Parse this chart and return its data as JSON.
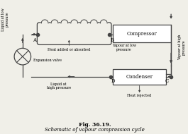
{
  "title": "Fig. 36.19.",
  "subtitle": "Schematic of vapour compression cycle",
  "bg_color": "#f0efe8",
  "line_color": "#444444",
  "compressor_label": "Compressor",
  "condenser_label": "Condenser",
  "heat_absorbed_label": "Heat added or absorbed",
  "expansion_valve_label": "Expansion valve",
  "point_A": "A",
  "point_B": "B",
  "point_C": "C",
  "point_D": "D",
  "label_liquid_low": "Liquid at low\npressure",
  "label_vapour_low": "Vapour at low\npressure",
  "label_vapour_high": "Vapour at high\npressure",
  "label_liquid_high": "Liquid at\nhigh pressure",
  "label_heat_rejected": "Heat rejected",
  "fig_bold": "Fig. 36.19.",
  "fig_italic": "Schematic of vapour compression cycle"
}
